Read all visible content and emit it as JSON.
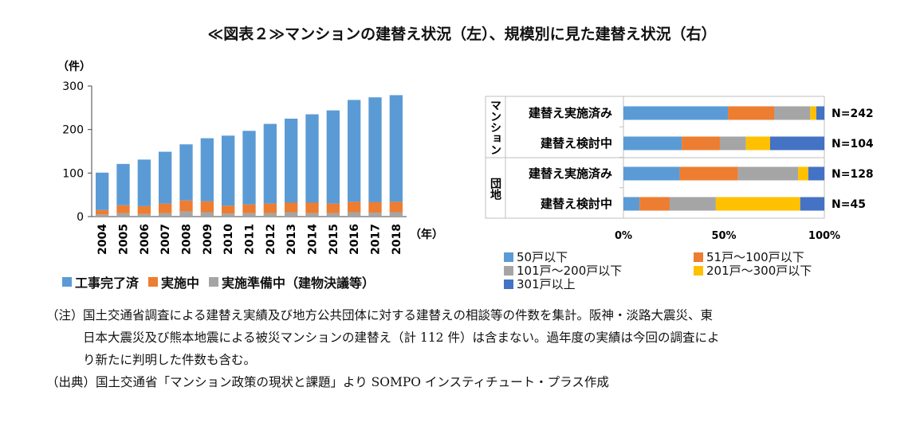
{
  "title": "≪図表２≫マンションの建替え状況（左）、規模別に見た建替え状況（右）",
  "chart_data": [
    {
      "type": "bar",
      "stacked": true,
      "ylabel": "（件）",
      "xlabel": "（年）",
      "ylim": [
        0,
        300
      ],
      "yticks": [
        0,
        100,
        200,
        300
      ],
      "categories": [
        "2004",
        "2005",
        "2006",
        "2007",
        "2008",
        "2009",
        "2010",
        "2011",
        "2012",
        "2013",
        "2014",
        "2015",
        "2016",
        "2017",
        "2018"
      ],
      "series": [
        {
          "name": "実施準備中（建物決議等）",
          "color": "#a5a5a5",
          "values": [
            5,
            8,
            6,
            8,
            12,
            10,
            7,
            8,
            8,
            10,
            8,
            8,
            10,
            9,
            10
          ]
        },
        {
          "name": "実施中",
          "color": "#ed7d31",
          "values": [
            10,
            18,
            18,
            22,
            25,
            25,
            18,
            20,
            22,
            22,
            24,
            22,
            24,
            24,
            24
          ]
        },
        {
          "name": "工事完了済",
          "color": "#5b9bd5",
          "values": [
            86,
            95,
            107,
            119,
            129,
            145,
            161,
            169,
            183,
            193,
            203,
            214,
            234,
            241,
            245
          ]
        }
      ],
      "legend_order": [
        "工事完了済",
        "実施中",
        "実施準備中（建物決議等）"
      ],
      "legend_position": "bottom"
    },
    {
      "type": "bar",
      "orientation": "horizontal",
      "stacked_percent": true,
      "xticks": [
        "0%",
        "50%",
        "100%"
      ],
      "groups": [
        {
          "label": "マンション",
          "rows": [
            0,
            1
          ]
        },
        {
          "label": "団地",
          "rows": [
            2,
            3
          ]
        }
      ],
      "categories": [
        "建替え実施済み",
        "建替え検討中",
        "建替え実施済み",
        "建替え検討中"
      ],
      "n_labels": [
        "N=242",
        "N=104",
        "N=128",
        "N=45"
      ],
      "series": [
        {
          "name": "50戸以下",
          "color": "#5b9bd5",
          "values": [
            52,
            29,
            28,
            8
          ]
        },
        {
          "name": "51戸～100戸以下",
          "color": "#ed7d31",
          "values": [
            23,
            19,
            29,
            15
          ]
        },
        {
          "name": "101戸～200戸以下",
          "color": "#a5a5a5",
          "values": [
            18,
            13,
            30,
            23
          ]
        },
        {
          "name": "201戸～300戸以下",
          "color": "#ffc000",
          "values": [
            3,
            12,
            5,
            42
          ]
        },
        {
          "name": "301戸以上",
          "color": "#4472c4",
          "values": [
            4,
            27,
            8,
            12
          ]
        }
      ],
      "legend_position": "bottom"
    }
  ],
  "notes": {
    "note_label": "（注）",
    "note_line1": "国土交通省調査による建替え実績及び地方公共団体に対する建替えの相談等の件数を集計。阪神・淡路大震災、東",
    "note_line2": "日本大震災及び熊本地震による被災マンションの建替え（計 112 件）は含まない。過年度の実績は今回の調査によ",
    "note_line3": "り新たに判明した件数も含む。",
    "source_label": "（出典）",
    "source_text": "国土交通省「マンション政策の現状と課題」より SOMPO インスティチュート・プラス作成"
  }
}
